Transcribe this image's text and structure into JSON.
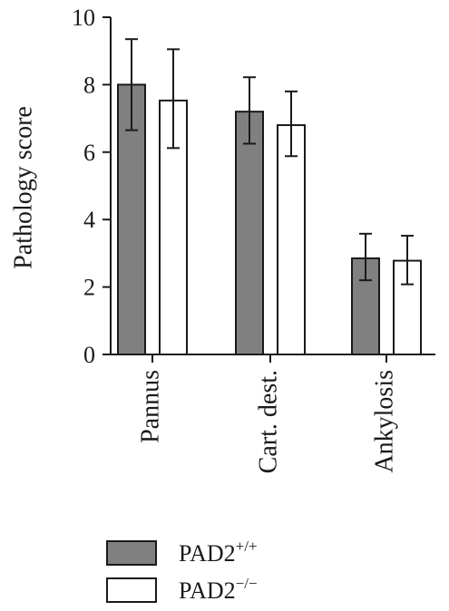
{
  "chart_data": {
    "type": "bar",
    "title": "",
    "xlabel": "",
    "ylabel": "Pathology score",
    "ylim": [
      0,
      10
    ],
    "yticks": [
      0,
      2,
      4,
      6,
      8,
      10
    ],
    "categories": [
      "Pannus",
      "Cart. dest.",
      "Ankylosis"
    ],
    "series": [
      {
        "name": "PAD2+/+",
        "name_base": "PAD2",
        "name_sup": "+/+",
        "color": "#808080",
        "values": [
          8.0,
          7.2,
          2.85
        ],
        "error_upper": [
          9.35,
          8.22,
          3.58
        ],
        "error_lower": [
          6.65,
          6.25,
          2.2
        ]
      },
      {
        "name": "PAD2−/−",
        "name_base": "PAD2",
        "name_sup": "−/−",
        "color": "#ffffff",
        "values": [
          7.53,
          6.8,
          2.78
        ],
        "error_upper": [
          9.05,
          7.8,
          3.52
        ],
        "error_lower": [
          6.12,
          5.88,
          2.08
        ]
      }
    ],
    "grid": false,
    "legend_position": "bottom"
  }
}
